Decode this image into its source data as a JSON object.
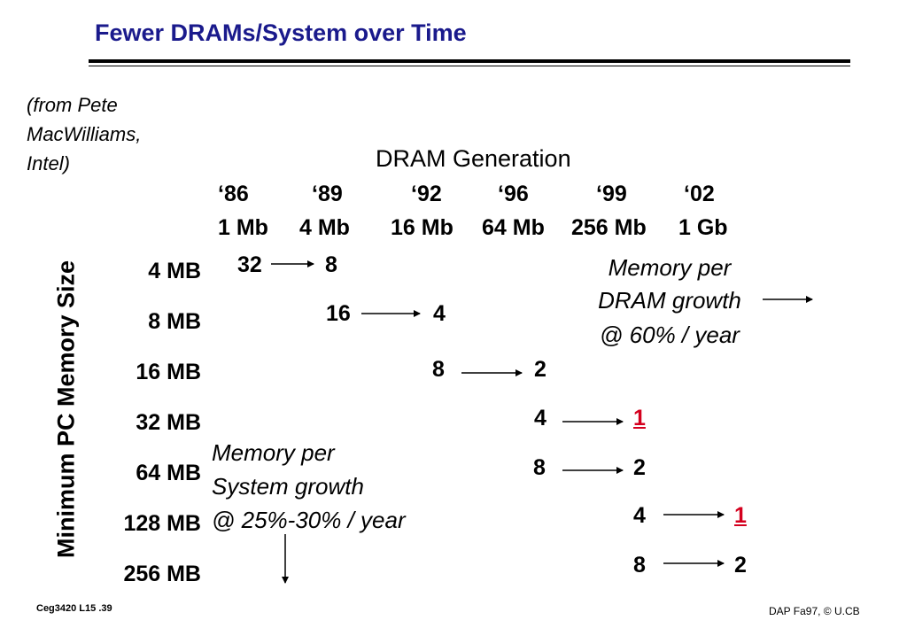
{
  "title": "Fewer DRAMs/System over Time",
  "source": [
    "(from Pete",
    "MacWilliams,",
    "Intel)"
  ],
  "generation_title": "DRAM Generation",
  "generations": [
    {
      "year": "‘86",
      "capacity": "1 Mb"
    },
    {
      "year": "‘89",
      "capacity": "4 Mb"
    },
    {
      "year": "‘92",
      "capacity": "16 Mb"
    },
    {
      "year": "‘96",
      "capacity": "64 Mb"
    },
    {
      "year": "‘99",
      "capacity": "256 Mb"
    },
    {
      "year": "‘02",
      "capacity": "1 Gb"
    }
  ],
  "y_axis_label": "Minimum PC Memory Size",
  "memory_sizes": [
    "4 MB",
    "8 MB",
    "16 MB",
    "32 MB",
    "64 MB",
    "128 MB",
    "256 MB"
  ],
  "rows": [
    {
      "size": "4 MB",
      "from": "32",
      "to": "8",
      "to_highlight": false
    },
    {
      "size": "8 MB",
      "from": "16",
      "to": "4",
      "to_highlight": false
    },
    {
      "size": "16 MB",
      "from": "8",
      "to": "2",
      "to_highlight": false
    },
    {
      "size": "32 MB",
      "from": "4",
      "to": "1",
      "to_highlight": true
    },
    {
      "size": "64 MB",
      "from": "8",
      "to": "2",
      "to_highlight": false
    },
    {
      "size": "128 MB",
      "from": "4",
      "to": "1",
      "to_highlight": true
    },
    {
      "size": "256 MB",
      "from": "8",
      "to": "2",
      "to_highlight": false
    }
  ],
  "dram_growth_note": [
    "Memory per",
    "DRAM growth",
    "@ 60% / year"
  ],
  "system_growth_note": [
    "Memory per",
    "System growth",
    "@ 25%-30% / year"
  ],
  "highlight_color": "#d4001e",
  "title_color": "#1a1a8c",
  "footer_left": "Ceg3420 L15 .39",
  "footer_right": "DAP Fa97, © U.CB"
}
